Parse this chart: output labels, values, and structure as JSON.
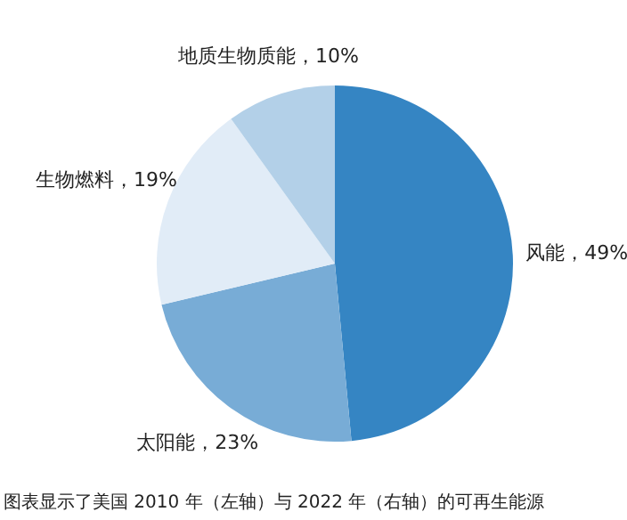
{
  "chart_data": {
    "type": "pie",
    "categories": [
      "风能",
      "太阳能",
      "生物燃料",
      "地质生物质能"
    ],
    "values": [
      49,
      23,
      19,
      10
    ],
    "colors": [
      "#3585c3",
      "#78acd6",
      "#e1ecf7",
      "#b3d0e8"
    ],
    "value_labels": [
      "49%",
      "23%",
      "19%",
      "10%"
    ],
    "annotations": [
      "图表显示了美国 2010 年（左轴）与 2022 年（右轴）的可再生能源"
    ]
  }
}
